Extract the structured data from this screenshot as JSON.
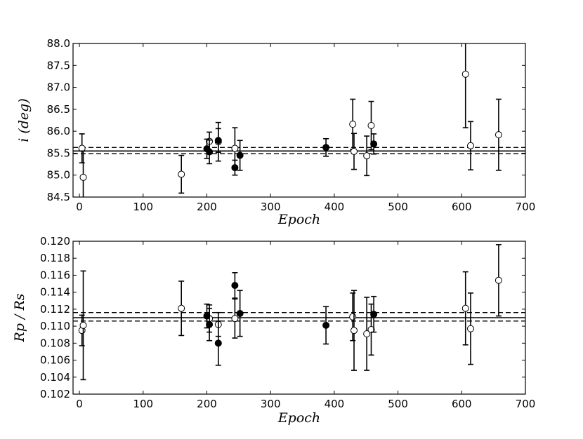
{
  "chart_data": [
    {
      "type": "scatter",
      "title": "",
      "xlabel": "Epoch",
      "ylabel": "i (deg)",
      "xlim": [
        -10,
        700
      ],
      "ylim": [
        84.5,
        88.0
      ],
      "x_ticks": [
        0,
        100,
        200,
        300,
        400,
        500,
        600,
        700
      ],
      "x_tick_labels": [
        "0",
        "100",
        "200",
        "300",
        "400",
        "500",
        "600",
        "700"
      ],
      "y_ticks": [
        84.5,
        85.0,
        85.5,
        86.0,
        86.5,
        87.0,
        87.5,
        88.0
      ],
      "y_tick_labels": [
        "84.5",
        "85.0",
        "85.5",
        "86.0",
        "86.5",
        "87.0",
        "87.5",
        "88.0"
      ],
      "grid": false,
      "reference_lines": {
        "mean": 85.55,
        "lower": 85.49,
        "upper": 85.63
      },
      "series": [
        {
          "marker": "open-circle",
          "points": [
            {
              "x": 4,
              "y": 85.61,
              "err": 0.33
            },
            {
              "x": 6,
              "y": 84.95,
              "err": 0.6
            },
            {
              "x": 160,
              "y": 85.02,
              "err": 0.43
            },
            {
              "x": 204,
              "y": 85.77,
              "err": 0.21
            },
            {
              "x": 218,
              "y": 85.76,
              "err": 0.44
            },
            {
              "x": 244,
              "y": 85.61,
              "err": 0.47
            },
            {
              "x": 429,
              "y": 86.16,
              "err": 0.57
            },
            {
              "x": 431,
              "y": 85.54,
              "err": 0.41
            },
            {
              "x": 451,
              "y": 85.44,
              "err": 0.45
            },
            {
              "x": 458,
              "y": 86.13,
              "err": 0.55
            },
            {
              "x": 606,
              "y": 87.3,
              "err": 1.22
            },
            {
              "x": 614,
              "y": 85.67,
              "err": 0.55
            },
            {
              "x": 658,
              "y": 85.92,
              "err": 0.81
            }
          ]
        },
        {
          "marker": "filled-circle",
          "points": [
            {
              "x": 200,
              "y": 85.6,
              "err": 0.22
            },
            {
              "x": 204,
              "y": 85.53,
              "err": 0.27
            },
            {
              "x": 218,
              "y": 85.79,
              "err": 0.27
            },
            {
              "x": 244,
              "y": 85.17,
              "err": 0.17
            },
            {
              "x": 252,
              "y": 85.45,
              "err": 0.34
            },
            {
              "x": 387,
              "y": 85.63,
              "err": 0.2
            },
            {
              "x": 462,
              "y": 85.71,
              "err": 0.23
            }
          ]
        }
      ]
    },
    {
      "type": "scatter",
      "title": "",
      "xlabel": "Epoch",
      "ylabel": "Rp / Rs",
      "xlim": [
        -10,
        700
      ],
      "ylim": [
        0.102,
        0.12
      ],
      "x_ticks": [
        0,
        100,
        200,
        300,
        400,
        500,
        600,
        700
      ],
      "x_tick_labels": [
        "0",
        "100",
        "200",
        "300",
        "400",
        "500",
        "600",
        "700"
      ],
      "y_ticks": [
        0.102,
        0.104,
        0.106,
        0.108,
        0.11,
        0.112,
        0.114,
        0.116,
        0.118,
        0.12
      ],
      "y_tick_labels": [
        "0.102",
        "0.104",
        "0.106",
        "0.108",
        "0.110",
        "0.112",
        "0.114",
        "0.116",
        "0.118",
        "0.120"
      ],
      "grid": false,
      "reference_lines": {
        "mean": 0.111,
        "lower": 0.1106,
        "upper": 0.1116
      },
      "series": [
        {
          "marker": "open-circle",
          "points": [
            {
              "x": 4,
              "y": 0.1095,
              "err": 0.0018
            },
            {
              "x": 6,
              "y": 0.1101,
              "err": 0.0064
            },
            {
              "x": 160,
              "y": 0.1121,
              "err": 0.0032
            },
            {
              "x": 204,
              "y": 0.1109,
              "err": 0.0016
            },
            {
              "x": 218,
              "y": 0.1102,
              "err": 0.0014
            },
            {
              "x": 244,
              "y": 0.1109,
              "err": 0.0023
            },
            {
              "x": 429,
              "y": 0.1111,
              "err": 0.0028
            },
            {
              "x": 431,
              "y": 0.1095,
              "err": 0.0047
            },
            {
              "x": 451,
              "y": 0.1091,
              "err": 0.0043
            },
            {
              "x": 458,
              "y": 0.1096,
              "err": 0.003
            },
            {
              "x": 606,
              "y": 0.1121,
              "err": 0.0043
            },
            {
              "x": 614,
              "y": 0.1097,
              "err": 0.0042
            },
            {
              "x": 658,
              "y": 0.1154,
              "err": 0.0042
            }
          ]
        },
        {
          "marker": "filled-circle",
          "points": [
            {
              "x": 200,
              "y": 0.1112,
              "err": 0.0014
            },
            {
              "x": 204,
              "y": 0.1102,
              "err": 0.0019
            },
            {
              "x": 218,
              "y": 0.108,
              "err": 0.0026
            },
            {
              "x": 244,
              "y": 0.1148,
              "err": 0.0015
            },
            {
              "x": 252,
              "y": 0.1115,
              "err": 0.0027
            },
            {
              "x": 387,
              "y": 0.1101,
              "err": 0.0022
            },
            {
              "x": 462,
              "y": 0.1114,
              "err": 0.0021
            }
          ]
        }
      ]
    }
  ],
  "colors": {
    "ink": "#000000",
    "open_fill": "#ffffff"
  }
}
